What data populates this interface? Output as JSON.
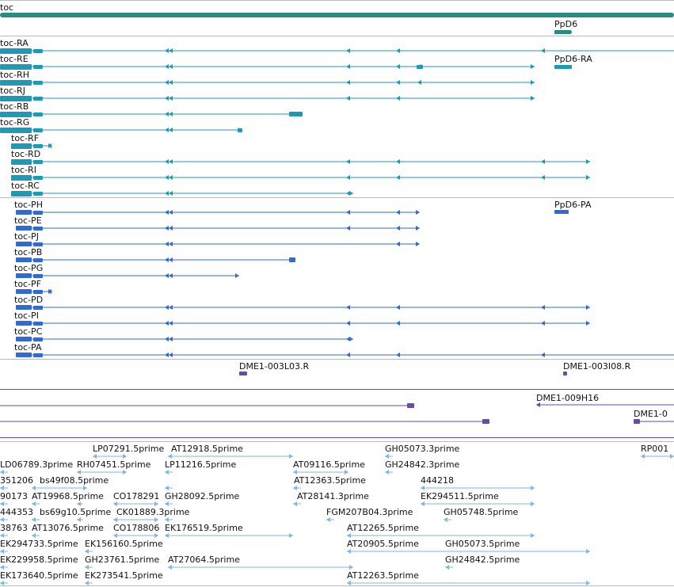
{
  "gene_track": {
    "label": "toc",
    "ppd6_label": "PpD6"
  },
  "transcripts_re": {
    "rows": [
      {
        "label": "toc-RA"
      },
      {
        "label": "toc-RE",
        "side_label": "PpD6-RA"
      },
      {
        "label": "toc-RH"
      },
      {
        "label": "toc-RJ"
      },
      {
        "label": "toc-RB"
      },
      {
        "label": "toc-RG"
      },
      {
        "label": "toc-RF"
      },
      {
        "label": "toc-RD"
      },
      {
        "label": "toc-RI"
      },
      {
        "label": "toc-RC"
      }
    ]
  },
  "transcripts_pe": {
    "rows": [
      {
        "label": "toc-PH",
        "side_label": "PpD6-PA"
      },
      {
        "label": "toc-PE"
      },
      {
        "label": "toc-PJ"
      },
      {
        "label": "toc-PB"
      },
      {
        "label": "toc-PG"
      },
      {
        "label": "toc-PF"
      },
      {
        "label": "toc-PD"
      },
      {
        "label": "toc-PI"
      },
      {
        "label": "toc-PC"
      },
      {
        "label": "toc-PA"
      }
    ]
  },
  "clones": {
    "labels": [
      "DME1-003L03.R",
      "DME1-003I08.R",
      "DME1-009H16",
      "DME1-0"
    ]
  },
  "ests": {
    "labels": [
      "LP07291.5prime",
      "AT12918.5prime",
      "GH05073.3prime",
      "RP001",
      "LD06789.3prime",
      "RH07451.5prime",
      "LP11216.5prime",
      "AT09116.5prime",
      "GH24842.3prime",
      "351206",
      "bs49f08.5prime",
      "AT12363.5prime",
      "444218",
      "90173",
      "AT19968.5prime",
      "CO178291",
      "GH28092.5prime",
      "AT28141.3prime",
      "EK294511.5prime",
      "444353",
      "bs69g10.5prime",
      "CK01889.3prime",
      "FGM207B04.3prime",
      "GH05748.5prime",
      "38763",
      "AT13076.5prime",
      "CO178806",
      "EK176519.5prime",
      "AT12265.5prime",
      "EK294733.5prime",
      "EK156160.5prime",
      "AT20905.5prime",
      "GH05073.5prime",
      "EK229958.5prime",
      "GH23761.5prime",
      "AT27064.5prime",
      "GH24842.5prime",
      "EK173640.5prime",
      "EK273541.5prime",
      "AT12263.5prime"
    ]
  },
  "colors": {
    "gene": "#2a8a86",
    "rna": "#1e9ab8",
    "protein": "#2f6bd1",
    "clone": "#6a4aa8",
    "est": "#7fb8dc",
    "divider": "#bbbbbb"
  }
}
